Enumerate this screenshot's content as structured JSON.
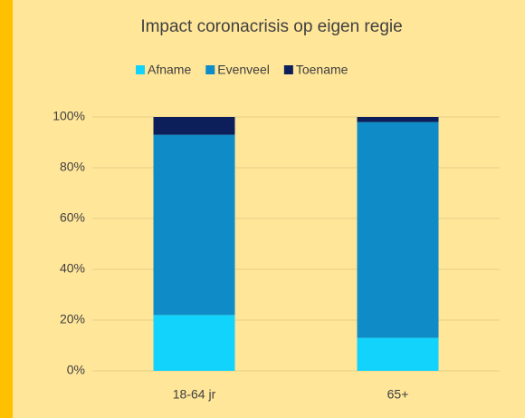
{
  "chart_data": {
    "type": "stacked_bar",
    "title": "Impact coronacrisis op eigen regie",
    "categories": [
      "18-64 jr",
      "65+"
    ],
    "series": [
      {
        "name": "Afname",
        "color": "#12d3fb",
        "values": [
          22,
          13
        ]
      },
      {
        "name": "Evenveel",
        "color": "#0f8bc7",
        "values": [
          71,
          85
        ]
      },
      {
        "name": "Toename",
        "color": "#0c1f5a",
        "values": [
          7,
          2
        ]
      }
    ],
    "ylim": [
      0,
      100
    ],
    "yticks": [
      {
        "value": 0,
        "label": "0%"
      },
      {
        "value": 20,
        "label": "20%"
      },
      {
        "value": 40,
        "label": "40%"
      },
      {
        "value": 60,
        "label": "60%"
      },
      {
        "value": 80,
        "label": "80%"
      },
      {
        "value": 100,
        "label": "100%"
      }
    ],
    "grid": true,
    "legend": "top"
  }
}
